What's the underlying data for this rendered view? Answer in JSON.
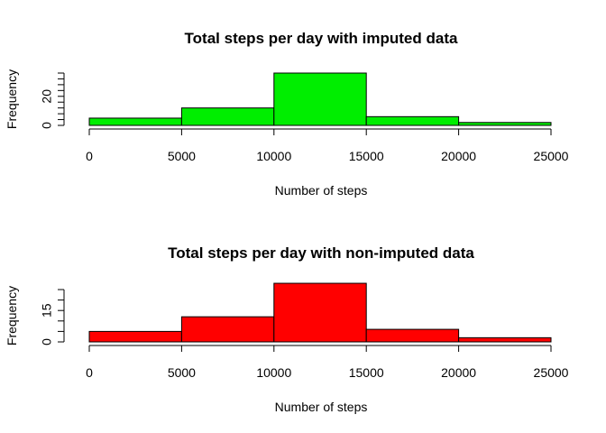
{
  "chart_data": [
    {
      "type": "bar",
      "title": "Total steps per day with imputed data",
      "xlabel": "Number of steps",
      "ylabel": "Frequency",
      "bin_edges": [
        0,
        5000,
        10000,
        15000,
        20000,
        25000
      ],
      "values": [
        5,
        12,
        36,
        6,
        2
      ],
      "xlim": [
        0,
        25000
      ],
      "x_ticks": [
        0,
        5000,
        10000,
        15000,
        20000,
        25000
      ],
      "ylim": [
        0,
        36
      ],
      "y_ticks": [
        0,
        4,
        8,
        12,
        16,
        20,
        24,
        28,
        32,
        36
      ],
      "y_tick_labels": [
        "0",
        "",
        "",
        "",
        "",
        "20",
        "",
        "",
        "",
        ""
      ],
      "color": "#00ee00",
      "grid": false
    },
    {
      "type": "bar",
      "title": "Total steps per day with non-imputed data",
      "xlabel": "Number of steps",
      "ylabel": "Frequency",
      "bin_edges": [
        0,
        5000,
        10000,
        15000,
        20000,
        25000
      ],
      "values": [
        5,
        12,
        28,
        6,
        2
      ],
      "xlim": [
        0,
        25000
      ],
      "x_ticks": [
        0,
        5000,
        10000,
        15000,
        20000,
        25000
      ],
      "ylim": [
        0,
        25
      ],
      "y_ticks": [
        0,
        5,
        10,
        15,
        20,
        25
      ],
      "y_tick_labels": [
        "0",
        "",
        "",
        "15",
        "",
        ""
      ],
      "color": "#ff0000",
      "grid": false
    }
  ]
}
